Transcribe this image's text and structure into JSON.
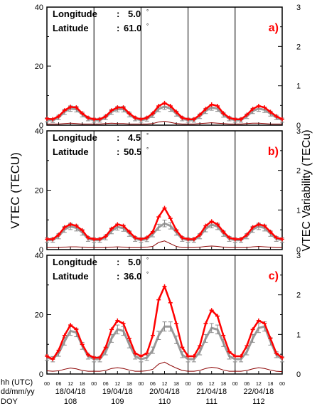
{
  "figure": {
    "left_axis_label": "VTEC (TECU)",
    "right_axis_label": "VTEC Variability (TECu)",
    "row_labels": [
      "hh (UTC)",
      "dd/mm/yy",
      "DOY"
    ],
    "hour_ticks": [
      "00",
      "06",
      "12",
      "18"
    ],
    "hour_tick_end": "00",
    "dates": [
      "18/04/18",
      "19/04/18",
      "20/04/18",
      "21/04/18",
      "22/04/18"
    ],
    "doys": [
      "108",
      "109",
      "110",
      "111",
      "112"
    ]
  },
  "colors": {
    "current": "#ff0000",
    "mean": "#8a8a8a",
    "variability": "#8b0000",
    "panel_letter": "#ff0000"
  },
  "chart_data": [
    {
      "type": "line",
      "panel": "a)",
      "longitude_label": "Longitude",
      "longitude_value": "5.0",
      "latitude_label": "Latitude",
      "latitude_value": "61.0",
      "degree": "°",
      "left_ylim": [
        0,
        40
      ],
      "left_yticks": [
        "0",
        "20",
        "40"
      ],
      "right_ylim": [
        0,
        3
      ],
      "right_yticks": [
        "0",
        "1",
        "2",
        "3"
      ],
      "x_hours": [
        0,
        3,
        6,
        9,
        12,
        15,
        18,
        21,
        24,
        27,
        30,
        33,
        36,
        39,
        42,
        45,
        48,
        51,
        54,
        57,
        60,
        63,
        66,
        69,
        72,
        75,
        78,
        81,
        84,
        87,
        90,
        93,
        96,
        99,
        102,
        105,
        108,
        111,
        114,
        117,
        120
      ],
      "series": [
        {
          "role": "current",
          "axis": "left",
          "values": [
            2.2,
            2.0,
            3.0,
            5.0,
            6.2,
            6.0,
            4.0,
            2.5,
            2.0,
            2.0,
            3.0,
            5.0,
            6.0,
            6.0,
            4.0,
            2.5,
            2.0,
            2.5,
            4.0,
            6.5,
            7.5,
            6.5,
            4.5,
            2.5,
            2.0,
            2.0,
            3.5,
            5.5,
            7.0,
            6.5,
            4.0,
            2.5,
            2.0,
            2.0,
            3.5,
            5.5,
            6.5,
            6.0,
            4.5,
            3.0,
            2.0
          ]
        },
        {
          "role": "mean",
          "axis": "left",
          "values": [
            1.8,
            1.6,
            2.6,
            4.5,
            5.6,
            5.4,
            3.6,
            2.2,
            1.7,
            1.7,
            2.6,
            4.5,
            5.4,
            5.4,
            3.6,
            2.2,
            1.7,
            2.1,
            3.4,
            5.5,
            6.3,
            5.6,
            3.9,
            2.2,
            1.7,
            1.7,
            3.0,
            4.8,
            6.0,
            5.6,
            3.5,
            2.2,
            1.7,
            1.7,
            3.0,
            4.8,
            5.6,
            5.2,
            3.9,
            2.6,
            1.7
          ]
        },
        {
          "role": "variability",
          "axis": "right",
          "values": [
            0.03,
            0.03,
            0.03,
            0.04,
            0.05,
            0.04,
            0.03,
            0.03,
            0.03,
            0.03,
            0.04,
            0.05,
            0.04,
            0.04,
            0.03,
            0.03,
            0.03,
            0.03,
            0.04,
            0.08,
            0.1,
            0.07,
            0.04,
            0.03,
            0.03,
            0.03,
            0.04,
            0.05,
            0.06,
            0.05,
            0.04,
            0.03,
            0.03,
            0.03,
            0.04,
            0.05,
            0.05,
            0.04,
            0.03,
            0.03,
            0.03
          ]
        }
      ]
    },
    {
      "type": "line",
      "panel": "b)",
      "longitude_label": "Longitude",
      "longitude_value": "4.5",
      "latitude_label": "Latitude",
      "latitude_value": "50.5",
      "degree": "°",
      "left_ylim": [
        0,
        40
      ],
      "left_yticks": [
        "0",
        "20",
        "40"
      ],
      "right_ylim": [
        0,
        3
      ],
      "right_yticks": [
        "0",
        "1",
        "2",
        "3"
      ],
      "x_hours": [
        0,
        3,
        6,
        9,
        12,
        15,
        18,
        21,
        24,
        27,
        30,
        33,
        36,
        39,
        42,
        45,
        48,
        51,
        54,
        57,
        60,
        63,
        66,
        69,
        72,
        75,
        78,
        81,
        84,
        87,
        90,
        93,
        96,
        99,
        102,
        105,
        108,
        111,
        114,
        117,
        120
      ],
      "series": [
        {
          "role": "current",
          "axis": "left",
          "values": [
            3.5,
            3.5,
            5.0,
            7.5,
            8.5,
            8.0,
            6.5,
            4.0,
            3.5,
            3.5,
            4.5,
            7.0,
            8.5,
            8.0,
            6.0,
            4.0,
            3.5,
            4.0,
            6.0,
            11.0,
            14.0,
            10.5,
            6.5,
            4.0,
            3.5,
            3.5,
            5.0,
            8.0,
            9.5,
            8.5,
            6.0,
            4.0,
            3.5,
            3.5,
            5.0,
            7.5,
            8.5,
            8.0,
            6.0,
            4.0,
            3.5
          ]
        },
        {
          "role": "mean",
          "axis": "left",
          "values": [
            3.2,
            3.2,
            4.5,
            6.8,
            7.8,
            7.3,
            5.8,
            3.6,
            3.2,
            3.2,
            4.1,
            6.3,
            7.6,
            7.2,
            5.4,
            3.6,
            3.2,
            3.5,
            5.2,
            7.5,
            8.8,
            8.0,
            5.8,
            3.6,
            3.2,
            3.2,
            4.5,
            7.0,
            8.4,
            7.8,
            5.4,
            3.6,
            3.2,
            3.2,
            4.5,
            6.8,
            7.8,
            7.3,
            5.4,
            3.6,
            3.2
          ]
        },
        {
          "role": "variability",
          "axis": "right",
          "values": [
            0.05,
            0.05,
            0.05,
            0.06,
            0.07,
            0.07,
            0.06,
            0.05,
            0.05,
            0.05,
            0.05,
            0.06,
            0.07,
            0.06,
            0.05,
            0.05,
            0.05,
            0.06,
            0.08,
            0.18,
            0.22,
            0.15,
            0.08,
            0.05,
            0.05,
            0.05,
            0.06,
            0.08,
            0.09,
            0.08,
            0.06,
            0.05,
            0.05,
            0.05,
            0.05,
            0.07,
            0.08,
            0.07,
            0.06,
            0.05,
            0.05
          ]
        }
      ]
    },
    {
      "type": "line",
      "panel": "c)",
      "longitude_label": "Longitude",
      "longitude_value": "5.0",
      "latitude_label": "Latitude",
      "latitude_value": "36.0",
      "degree": "°",
      "left_ylim": [
        0,
        40
      ],
      "left_yticks": [
        "0",
        "20",
        "40"
      ],
      "right_ylim": [
        0,
        3
      ],
      "right_yticks": [
        "0",
        "1",
        "2",
        "3"
      ],
      "x_hours": [
        0,
        3,
        6,
        9,
        12,
        15,
        18,
        21,
        24,
        27,
        30,
        33,
        36,
        39,
        42,
        45,
        48,
        51,
        54,
        57,
        60,
        63,
        66,
        69,
        72,
        75,
        78,
        81,
        84,
        87,
        90,
        93,
        96,
        99,
        102,
        105,
        108,
        111,
        114,
        117,
        120
      ],
      "series": [
        {
          "role": "current",
          "axis": "left",
          "values": [
            6.0,
            5.0,
            8.0,
            13.0,
            16.5,
            15.0,
            10.0,
            6.5,
            5.5,
            5.5,
            9.0,
            15.0,
            18.0,
            17.0,
            12.0,
            7.0,
            6.0,
            7.0,
            13.0,
            25.0,
            29.5,
            24.0,
            17.0,
            9.0,
            6.0,
            6.0,
            9.5,
            17.0,
            21.5,
            19.5,
            13.0,
            7.5,
            6.0,
            6.0,
            9.5,
            15.0,
            18.0,
            17.0,
            12.0,
            7.0,
            5.5
          ]
        },
        {
          "role": "mean",
          "axis": "left",
          "values": [
            5.5,
            5.0,
            7.0,
            11.0,
            14.5,
            14.0,
            9.5,
            6.0,
            5.0,
            5.0,
            7.5,
            12.0,
            15.0,
            14.5,
            10.0,
            6.0,
            5.0,
            5.5,
            8.0,
            13.0,
            16.0,
            16.0,
            11.5,
            6.5,
            5.0,
            5.0,
            7.5,
            12.0,
            15.5,
            15.0,
            10.5,
            6.0,
            5.0,
            5.0,
            7.5,
            12.0,
            15.5,
            16.0,
            11.0,
            6.5,
            5.0
          ]
        },
        {
          "role": "variability",
          "axis": "right",
          "values": [
            0.08,
            0.07,
            0.08,
            0.12,
            0.15,
            0.13,
            0.09,
            0.07,
            0.07,
            0.07,
            0.09,
            0.14,
            0.16,
            0.14,
            0.1,
            0.07,
            0.07,
            0.08,
            0.12,
            0.25,
            0.3,
            0.22,
            0.15,
            0.09,
            0.07,
            0.07,
            0.09,
            0.14,
            0.17,
            0.15,
            0.1,
            0.07,
            0.07,
            0.07,
            0.09,
            0.13,
            0.16,
            0.14,
            0.1,
            0.07,
            0.06
          ]
        }
      ]
    }
  ]
}
